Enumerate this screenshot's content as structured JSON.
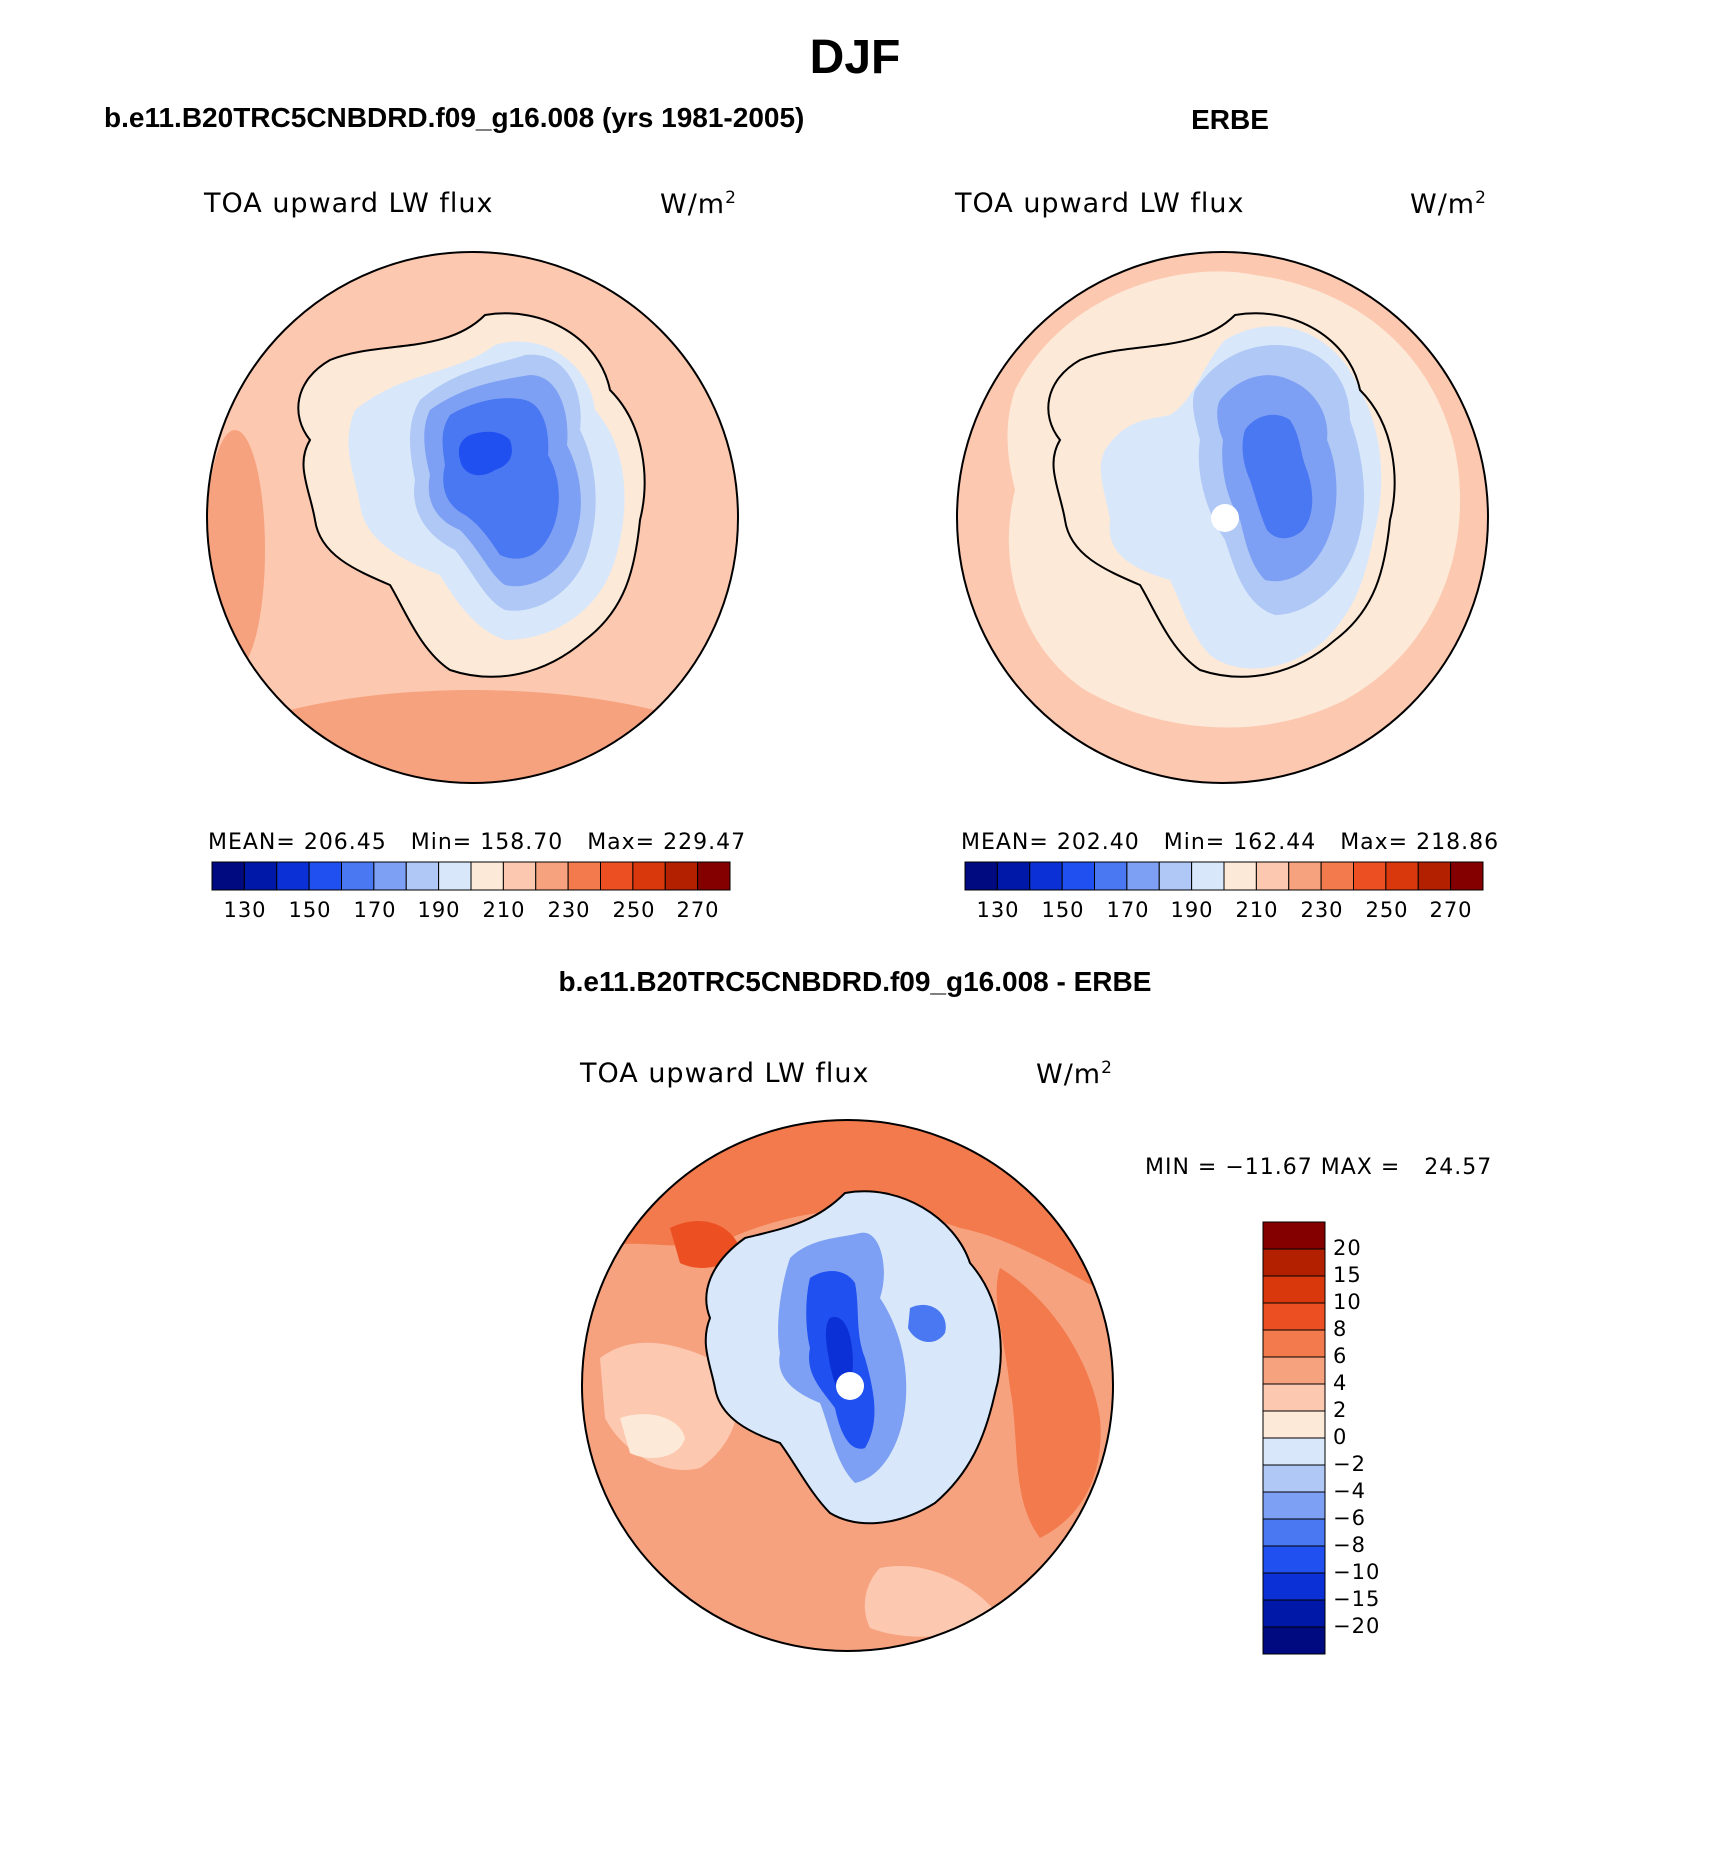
{
  "figure_title": "DJF",
  "panels": [
    {
      "id": "model",
      "title": "b.e11.B20TRC5CNBDRD.f09_g16.008 (yrs 1981-2005)",
      "variable_label": "TOA upward LW flux",
      "units": "W/m",
      "units_exp": "2",
      "stats": "MEAN= 206.45   Min= 158.70   Max= 229.47"
    },
    {
      "id": "obs",
      "title": "ERBE",
      "variable_label": "TOA upward LW flux",
      "units": "W/m",
      "units_exp": "2",
      "stats": "MEAN= 202.40   Min= 162.44   Max= 218.86"
    },
    {
      "id": "diff",
      "title": "b.e11.B20TRC5CNBDRD.f09_g16.008 - ERBE",
      "variable_label": "TOA upward LW flux",
      "units": "W/m",
      "units_exp": "2",
      "stats": "MIN = −11.67 MAX =   24.57"
    }
  ],
  "colorbar_abs": {
    "colors": [
      "#000a80",
      "#0018a8",
      "#0a30d6",
      "#2050f0",
      "#4a78f2",
      "#7ea0f4",
      "#b0c8f6",
      "#d8e8fa",
      "#fde9d8",
      "#fcc8b0",
      "#f7a27e",
      "#f27a4c",
      "#ec5022",
      "#d8380c",
      "#b32000",
      "#840000"
    ],
    "tick_labels": [
      "130",
      "150",
      "170",
      "190",
      "210",
      "230",
      "250",
      "270"
    ]
  },
  "colorbar_diff": {
    "colors": [
      "#840000",
      "#b32000",
      "#d8380c",
      "#ec5022",
      "#f27a4c",
      "#f7a27e",
      "#fcc8b0",
      "#fde9d8",
      "#d8e8fa",
      "#b0c8f6",
      "#7ea0f4",
      "#4a78f2",
      "#2050f0",
      "#0a30d6",
      "#0018a8",
      "#000a80"
    ],
    "tick_labels": [
      "20",
      "15",
      "10",
      "8",
      "6",
      "4",
      "2",
      "0",
      "−2",
      "−4",
      "−6",
      "−8",
      "−10",
      "−15",
      "−20"
    ]
  }
}
